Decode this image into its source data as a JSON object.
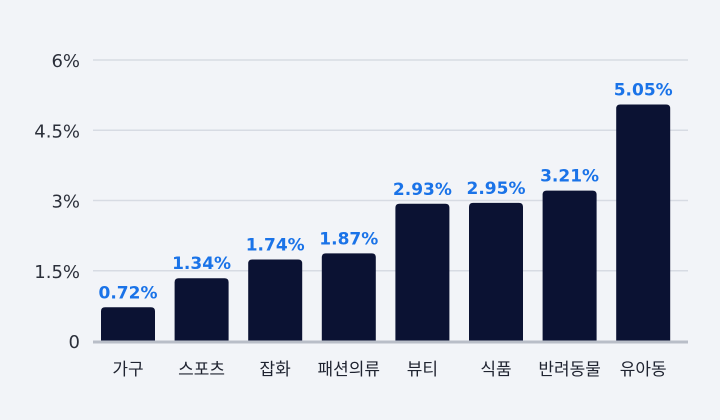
{
  "chart_data": {
    "type": "bar",
    "categories": [
      "가구",
      "스포츠",
      "잡화",
      "패션의류",
      "뷰티",
      "식품",
      "반려동물",
      "유아동"
    ],
    "values": [
      0.72,
      1.34,
      1.74,
      1.87,
      2.93,
      2.95,
      3.21,
      5.05
    ],
    "value_labels": [
      "0.72%",
      "1.34%",
      "1.74%",
      "1.87%",
      "2.93%",
      "2.95%",
      "3.21%",
      "5.05%"
    ],
    "yticks": [
      "0",
      "1.5%",
      "3%",
      "4.5%",
      "6%"
    ],
    "ytick_values": [
      0,
      1.5,
      3,
      4.5,
      6
    ],
    "ylim": [
      0,
      6
    ],
    "title": "",
    "xlabel": "",
    "ylabel": "",
    "grid": true,
    "colors": {
      "bar": "#0b1233",
      "label": "#1a73e8",
      "grid": "#d7dbe3",
      "baseline": "#b9bec8",
      "background": "#f2f4f8"
    }
  }
}
